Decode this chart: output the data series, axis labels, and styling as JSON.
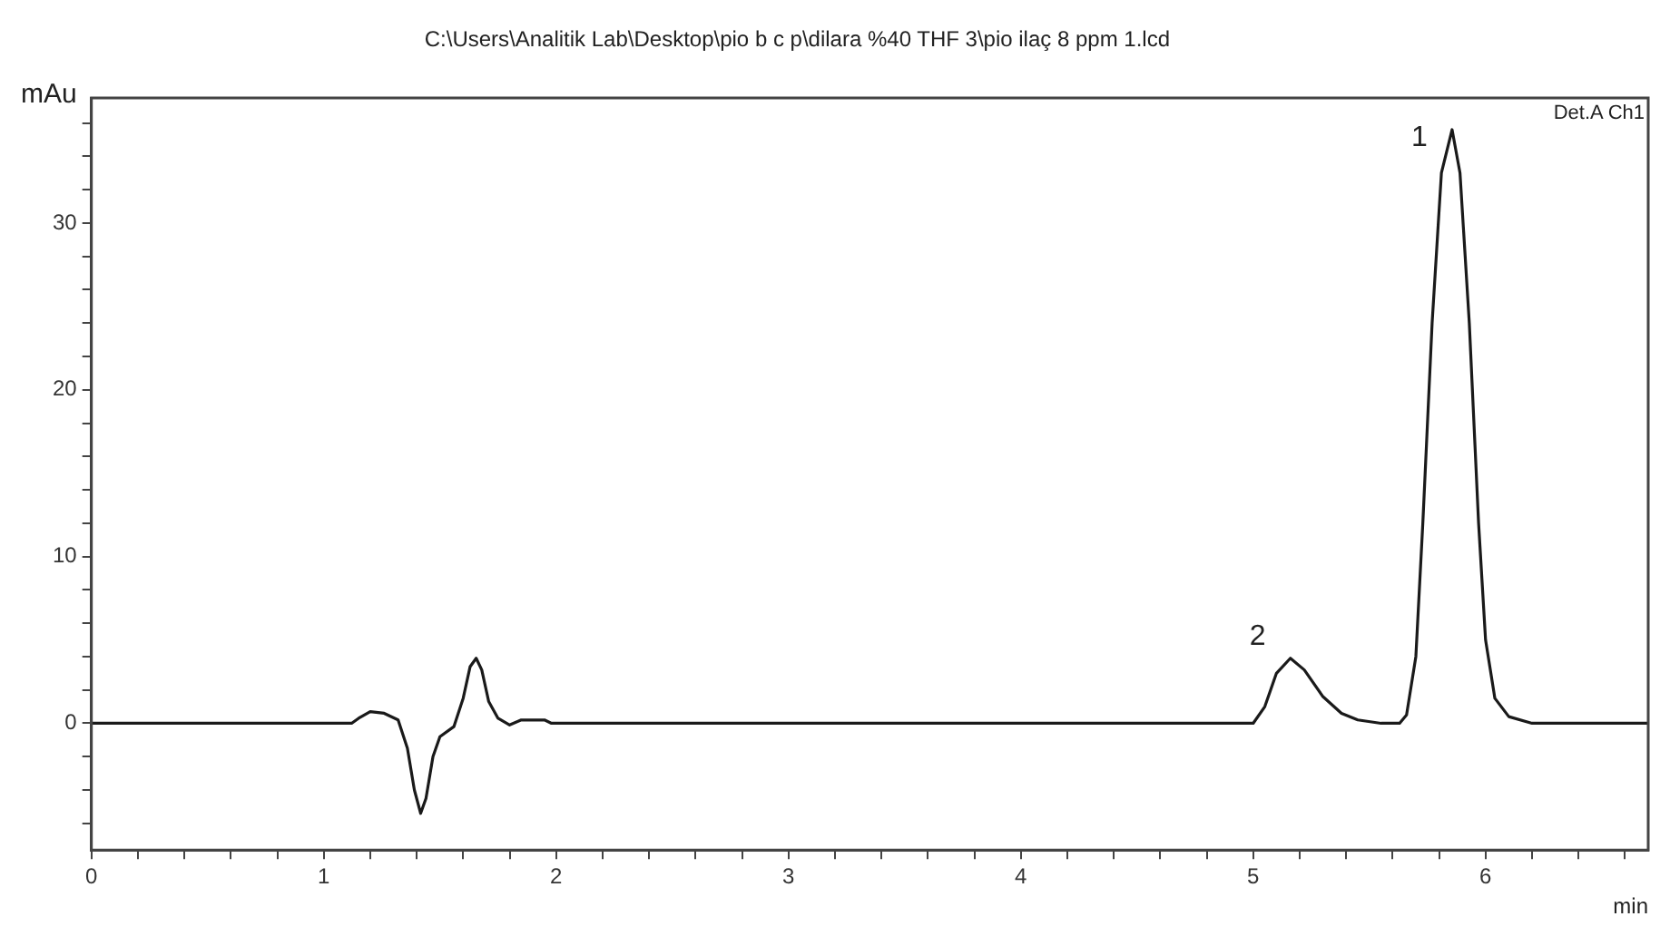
{
  "chart_data": {
    "type": "line",
    "title": "C:\\Users\\Analitik Lab\\Desktop\\pio b c p\\dilara %40 THF 3\\pio ilaç 8 ppm 1.lcd",
    "xlabel": "min",
    "ylabel": "mAu",
    "x": [
      0,
      1.12,
      1.15,
      1.2,
      1.26,
      1.32,
      1.36,
      1.39,
      1.417,
      1.44,
      1.47,
      1.5,
      1.56,
      1.6,
      1.63,
      1.656,
      1.68,
      1.71,
      1.75,
      1.8,
      1.85,
      1.95,
      1.98,
      5.0,
      5.05,
      5.1,
      5.16,
      5.22,
      5.3,
      5.38,
      5.45,
      5.55,
      5.63,
      5.66,
      5.7,
      5.73,
      5.77,
      5.81,
      5.856,
      5.89,
      5.93,
      5.97,
      6.0,
      6.04,
      6.1,
      6.2,
      6.7
    ],
    "series": [
      {
        "color": "#1a1a1a",
        "values": [
          0,
          0,
          0.3,
          0.7,
          0.6,
          0.2,
          -1.5,
          -4,
          -5.4,
          -4.5,
          -2,
          -0.8,
          -0.2,
          1.5,
          3.4,
          3.9,
          3.2,
          1.3,
          0.3,
          -0.1,
          0.2,
          0.2,
          0,
          0,
          1.0,
          3.0,
          3.9,
          3.2,
          1.6,
          0.6,
          0.2,
          0,
          0,
          0.5,
          4,
          12,
          24,
          33,
          35.6,
          33,
          24,
          12,
          5,
          1.5,
          0.4,
          0,
          0
        ]
      }
    ],
    "xlim": [
      0,
      6.7
    ],
    "ylim": [
      -7.6,
      37.5
    ],
    "xticks": [
      0,
      {
        "value": 0.2,
        "label": null
      },
      {
        "value": 0.4,
        "label": null
      },
      {
        "value": 0.6,
        "label": null
      },
      {
        "value": 0.8,
        "label": null
      },
      1,
      {
        "value": 1.2,
        "label": null
      },
      {
        "value": 1.4,
        "label": null
      },
      {
        "value": 1.6,
        "label": null
      },
      {
        "value": 1.8,
        "label": null
      },
      2,
      {
        "value": 2.2,
        "label": null
      },
      {
        "value": 2.4,
        "label": null
      },
      {
        "value": 2.6,
        "label": null
      },
      {
        "value": 2.8,
        "label": null
      },
      3,
      {
        "value": 3.2,
        "label": null
      },
      {
        "value": 3.4,
        "label": null
      },
      {
        "value": 3.6,
        "label": null
      },
      {
        "value": 3.8,
        "label": null
      },
      4,
      {
        "value": 4.2,
        "label": null
      },
      {
        "value": 4.4,
        "label": null
      },
      {
        "value": 4.6,
        "label": null
      },
      {
        "value": 4.8,
        "label": null
      },
      5,
      {
        "value": 5.2,
        "label": null
      },
      {
        "value": 5.4,
        "label": null
      },
      {
        "value": 5.6,
        "label": null
      },
      {
        "value": 5.8,
        "label": null
      },
      6,
      {
        "value": 6.2,
        "label": null
      },
      {
        "value": 6.4,
        "label": null
      },
      {
        "value": 6.6,
        "label": null
      }
    ],
    "yticks": [
      {
        "value": -6,
        "label": null
      },
      {
        "value": -4,
        "label": null
      },
      {
        "value": -2,
        "label": null
      },
      0,
      {
        "value": 2,
        "label": null
      },
      {
        "value": 4,
        "label": null
      },
      {
        "value": 6,
        "label": null
      },
      {
        "value": 8,
        "label": null
      },
      10,
      {
        "value": 12,
        "label": null
      },
      {
        "value": 14,
        "label": null
      },
      {
        "value": 16,
        "label": null
      },
      {
        "value": 18,
        "label": null
      },
      20,
      {
        "value": 22,
        "label": null
      },
      {
        "value": 24,
        "label": null
      },
      {
        "value": 26,
        "label": null
      },
      {
        "value": 28,
        "label": null
      },
      30,
      {
        "value": 32,
        "label": null
      },
      {
        "value": 34,
        "label": null
      },
      {
        "value": 36,
        "label": null
      }
    ],
    "grid": false,
    "legend": false,
    "marker": "none",
    "line_style": "solid",
    "annotations": [
      "Det.A Ch1",
      {
        "text": "1",
        "x": 5.856,
        "y": 35.6
      },
      {
        "text": "2",
        "x": 5.16,
        "y": 3.9
      }
    ]
  }
}
